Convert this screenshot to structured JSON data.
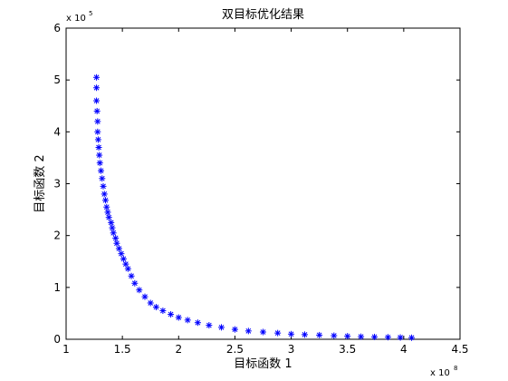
{
  "chart_data": {
    "type": "scatter",
    "title": "双目标优化结果",
    "xlabel": "目标函数 1",
    "ylabel": "目标函数 2",
    "x_multiplier": {
      "base": "x 10",
      "exponent": "8"
    },
    "y_multiplier": {
      "base": "x 10",
      "exponent": "5"
    },
    "xlim": [
      1,
      4.5
    ],
    "ylim": [
      0,
      6
    ],
    "xticks": [
      1,
      1.5,
      2,
      2.5,
      3,
      3.5,
      4,
      4.5
    ],
    "yticks": [
      0,
      1,
      2,
      3,
      4,
      5,
      6
    ],
    "xtick_labels": [
      "1",
      "1.5",
      "2",
      "2.5",
      "3",
      "3.5",
      "4",
      "4.5"
    ],
    "ytick_labels": [
      "0",
      "1",
      "2",
      "3",
      "4",
      "5",
      "6"
    ],
    "grid": false,
    "marker": "asterisk",
    "marker_color": "#0000ff",
    "x": [
      1.27,
      1.27,
      1.27,
      1.275,
      1.28,
      1.28,
      1.285,
      1.29,
      1.295,
      1.3,
      1.31,
      1.32,
      1.33,
      1.34,
      1.35,
      1.36,
      1.37,
      1.38,
      1.4,
      1.41,
      1.42,
      1.44,
      1.45,
      1.47,
      1.49,
      1.51,
      1.53,
      1.55,
      1.58,
      1.61,
      1.65,
      1.7,
      1.75,
      1.8,
      1.86,
      1.93,
      2.0,
      2.08,
      2.17,
      2.27,
      2.38,
      2.5,
      2.62,
      2.75,
      2.88,
      3.0,
      3.12,
      3.25,
      3.38,
      3.5,
      3.62,
      3.74,
      3.86,
      3.97,
      4.07
    ],
    "y": [
      5.05,
      4.85,
      4.6,
      4.4,
      4.2,
      4.0,
      3.85,
      3.7,
      3.55,
      3.4,
      3.25,
      3.1,
      2.95,
      2.8,
      2.68,
      2.55,
      2.45,
      2.35,
      2.25,
      2.15,
      2.05,
      1.95,
      1.85,
      1.75,
      1.65,
      1.55,
      1.45,
      1.36,
      1.22,
      1.08,
      0.95,
      0.82,
      0.7,
      0.62,
      0.55,
      0.48,
      0.42,
      0.37,
      0.32,
      0.27,
      0.23,
      0.19,
      0.16,
      0.14,
      0.12,
      0.1,
      0.09,
      0.08,
      0.07,
      0.06,
      0.05,
      0.045,
      0.04,
      0.035,
      0.03
    ]
  }
}
